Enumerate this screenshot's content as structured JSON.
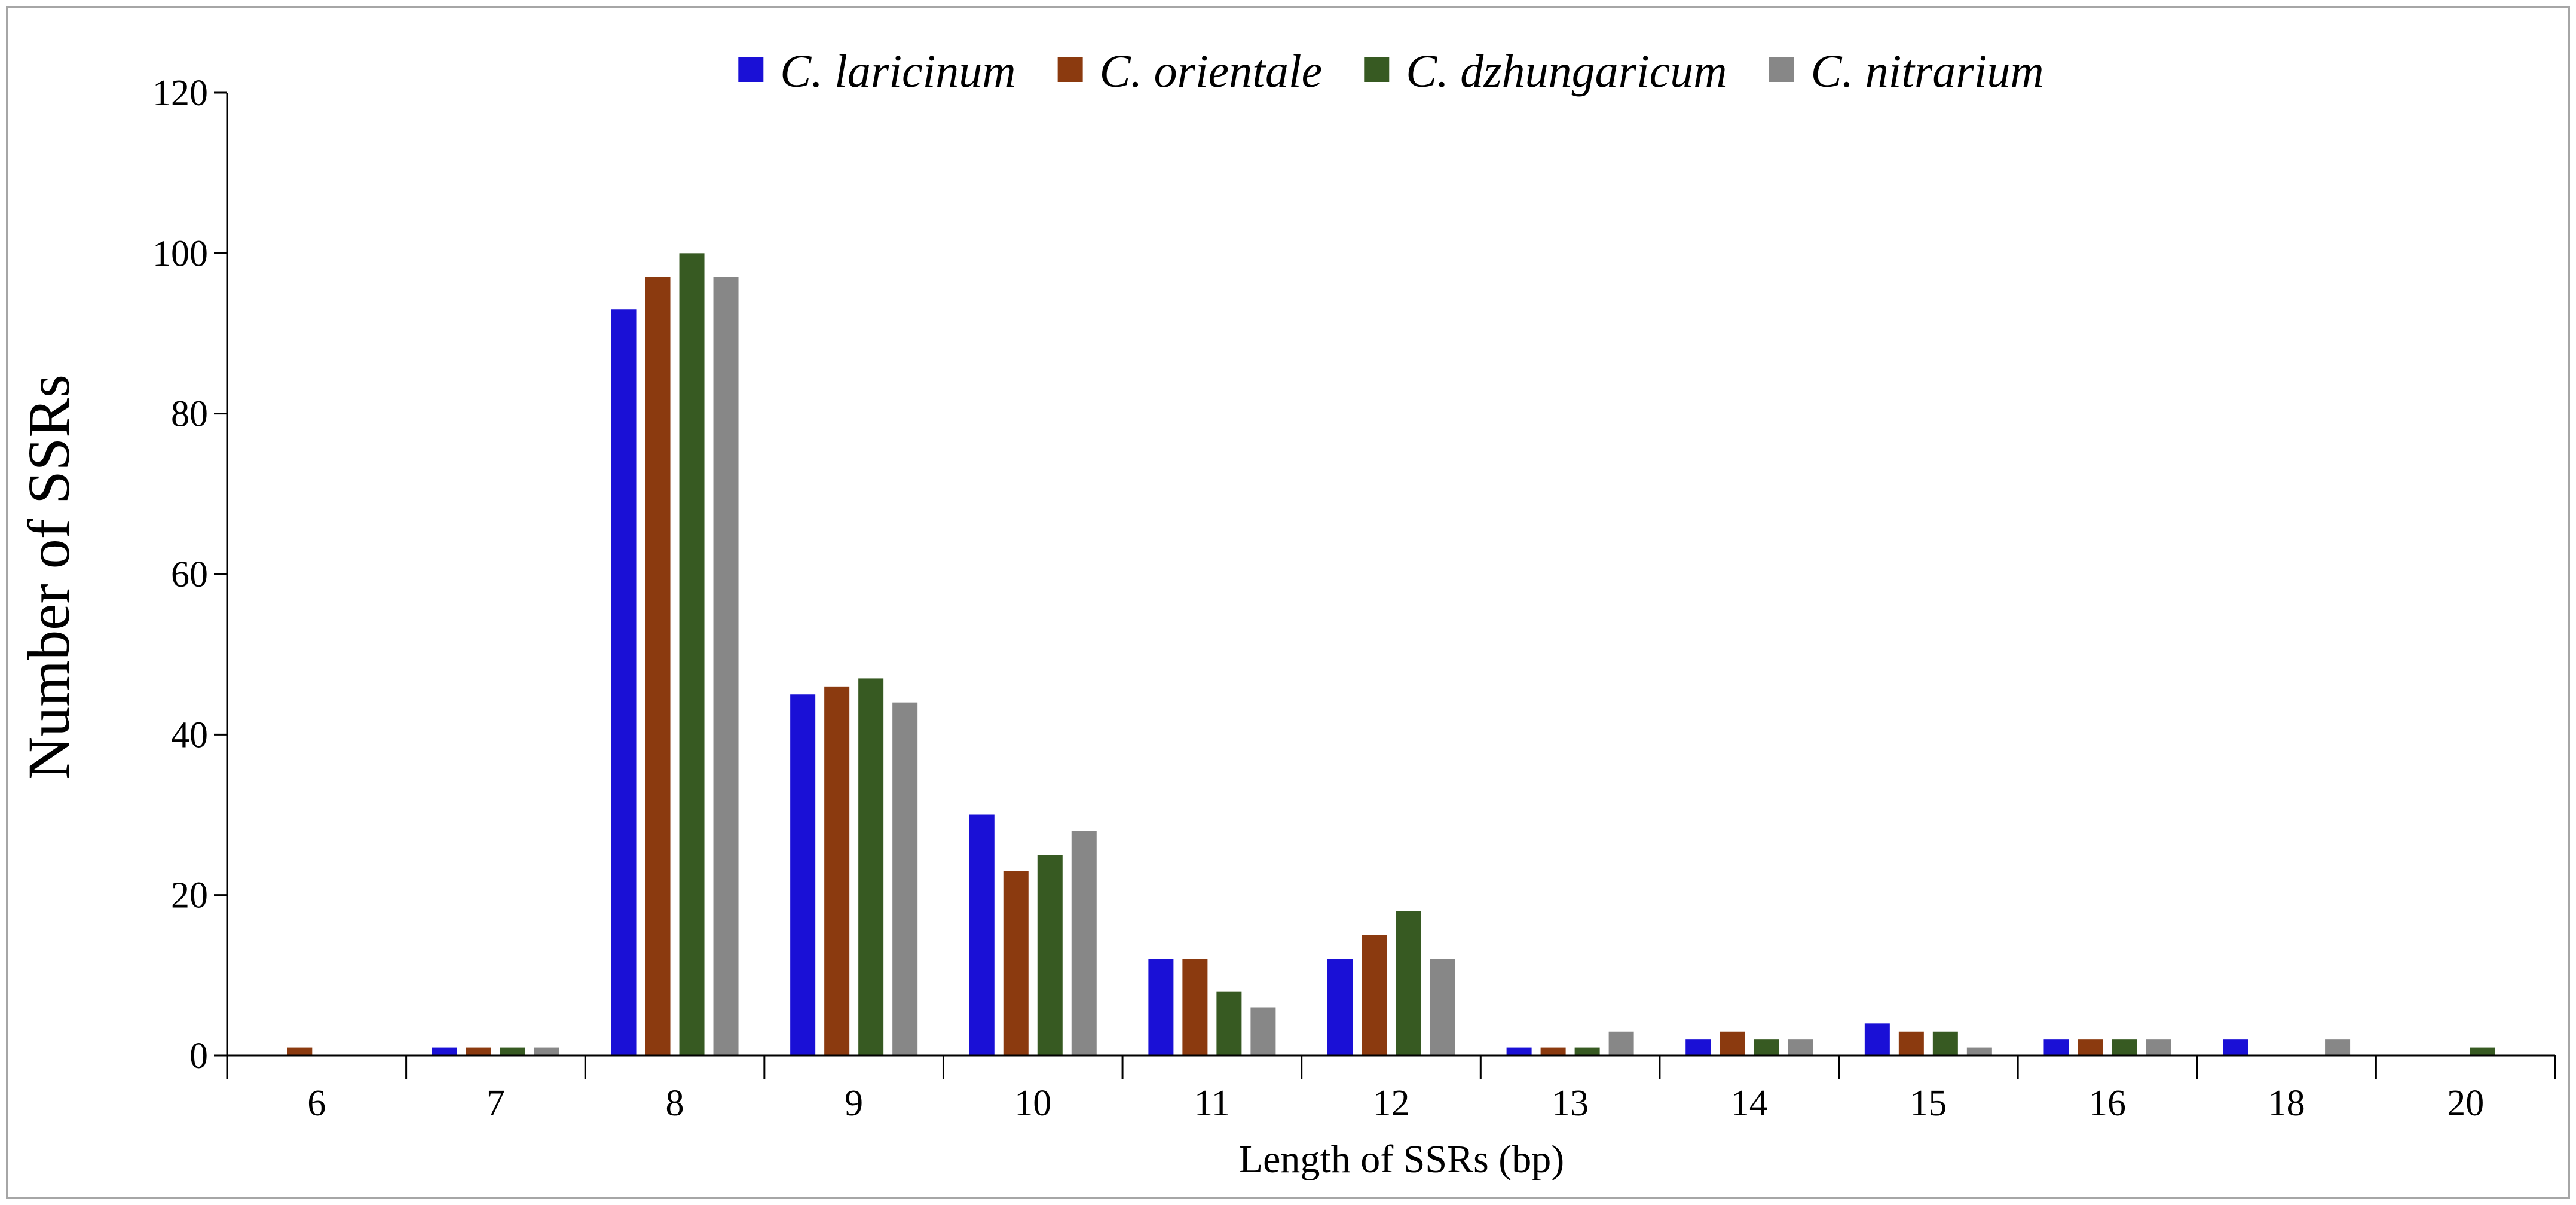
{
  "chart_data": {
    "type": "bar",
    "title": "",
    "xlabel": "Length of SSRs (bp)",
    "ylabel": "Number of SSRs",
    "categories": [
      "6",
      "7",
      "8",
      "9",
      "10",
      "11",
      "12",
      "13",
      "14",
      "15",
      "16",
      "18",
      "20"
    ],
    "ylim": [
      0,
      120
    ],
    "yticks": [
      0,
      20,
      40,
      60,
      80,
      100,
      120
    ],
    "grid": false,
    "legend_position": "top",
    "series": [
      {
        "name": "C. laricinum",
        "color": "#1a10d6",
        "values": [
          0,
          1,
          93,
          45,
          30,
          12,
          12,
          1,
          2,
          4,
          2,
          2,
          0
        ]
      },
      {
        "name": "C. orientale",
        "color": "#8b3a0f",
        "values": [
          1,
          1,
          97,
          46,
          23,
          12,
          15,
          1,
          3,
          3,
          2,
          0,
          0
        ]
      },
      {
        "name": "C. dzhungaricum",
        "color": "#375a22",
        "values": [
          0,
          1,
          100,
          47,
          25,
          8,
          18,
          1,
          2,
          3,
          2,
          0,
          1
        ]
      },
      {
        "name": "C. nitrarium",
        "color": "#878787",
        "values": [
          0,
          1,
          97,
          44,
          28,
          6,
          12,
          3,
          2,
          1,
          2,
          2,
          0
        ]
      }
    ]
  }
}
